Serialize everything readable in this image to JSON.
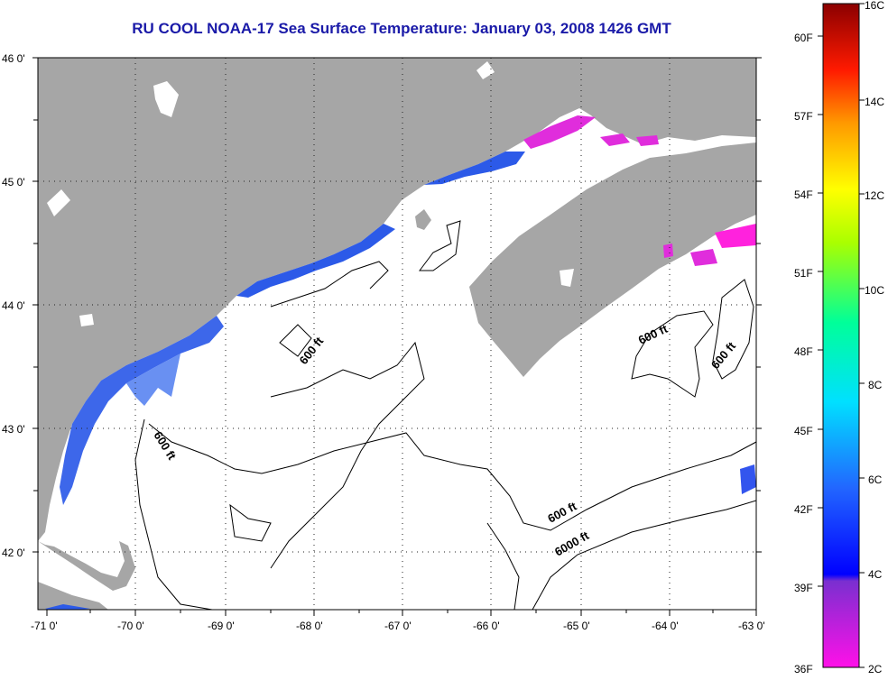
{
  "title": "RU COOL  NOAA-17  Sea Surface Temperature:  January 03, 2008 1426 GMT",
  "lat_ticks": [
    "46 0'",
    "45 0'",
    "44 0'",
    "43 0'",
    "42 0'"
  ],
  "lon_ticks": [
    "-71 0'",
    "-70 0'",
    "-69 0'",
    "-68 0'",
    "-67 0'",
    "-66 0'",
    "-65 0'",
    "-64 0'",
    "-63 0'"
  ],
  "contours": {
    "c1": "600 ft",
    "c2": "600 ft",
    "c3": "600 ft",
    "c4": "600 ft",
    "c5": "600 ft",
    "c6": "6000 ft"
  },
  "colorbar": {
    "fahrenheit": [
      "60F",
      "57F",
      "54F",
      "51F",
      "48F",
      "45F",
      "42F",
      "39F",
      "36F"
    ],
    "celsius": [
      "16C",
      "14C",
      "12C",
      "10C",
      "8C",
      "6C",
      "4C",
      "2C"
    ]
  },
  "colors": {
    "land": "#a6a6a6",
    "title": "#1a1aa8",
    "cold_magenta": "#ff22dd",
    "cool_blue": "#2255ee"
  }
}
